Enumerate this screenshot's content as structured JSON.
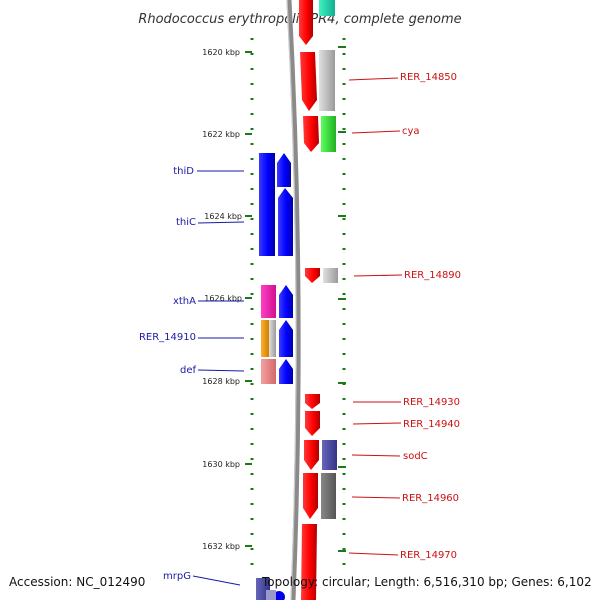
{
  "title": "Rhodococcus erythropolis PR4, complete genome",
  "footer": {
    "accession": "Accession: NC_012490",
    "topology": "Topology: circular; Length: 6,516,310 bp; Genes: 6,102"
  },
  "ruler": {
    "ticks": [
      {
        "label": "1620 kbp"
      },
      {
        "label": "1622 kbp"
      },
      {
        "label": "1624 kbp"
      },
      {
        "label": "1626 kbp"
      },
      {
        "label": "1628 kbp"
      },
      {
        "label": "1630 kbp"
      },
      {
        "label": "1632 kbp"
      }
    ]
  },
  "genes_left": [
    {
      "name": "thiD"
    },
    {
      "name": "thiC"
    },
    {
      "name": "xthA"
    },
    {
      "name": "RER_14910"
    },
    {
      "name": "def"
    },
    {
      "name": "mrpG"
    }
  ],
  "genes_right": [
    {
      "name": "RER_14850"
    },
    {
      "name": "cya"
    },
    {
      "name": "RER_14890"
    },
    {
      "name": "RER_14930"
    },
    {
      "name": "RER_14940"
    },
    {
      "name": "sodC"
    },
    {
      "name": "RER_14960"
    },
    {
      "name": "RER_14970"
    }
  ],
  "colors": {
    "forward_strand": "#0000ee",
    "reverse_strand": "#ee0000",
    "backbone": "#888888",
    "ruler_dots": "#1a7a1a",
    "label_blue": "#1a1aa8",
    "label_red": "#cc1111"
  }
}
